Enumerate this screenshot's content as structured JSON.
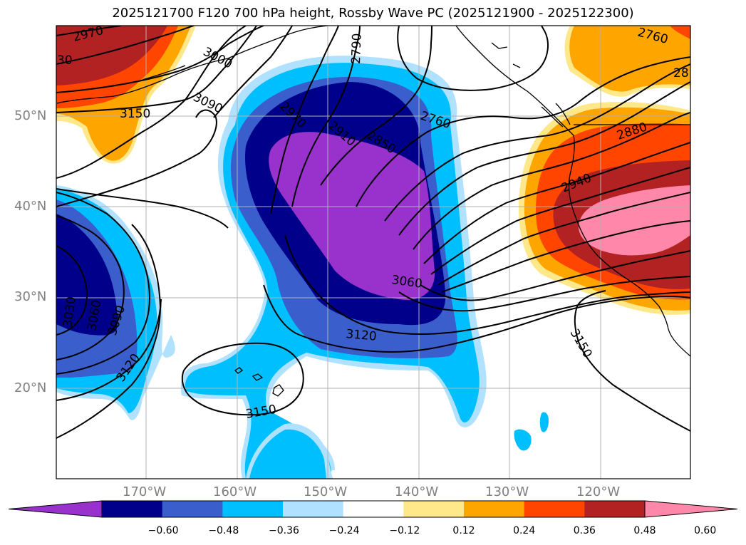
{
  "title": "2025121700 F120 700 hPa height, Rossby Wave PC (2025121900 - 2025122300)",
  "lat_labels": [
    "50°N",
    "40°N",
    "30°N",
    "20°N"
  ],
  "lon_labels": [
    "170°W",
    "160°W",
    "150°W",
    "140°W",
    "130°W",
    "120°W"
  ],
  "colorbar": {
    "ticks": [
      "−0.60",
      "−0.48",
      "−0.36",
      "−0.24",
      "−0.12",
      "0.12",
      "0.24",
      "0.36",
      "0.48",
      "0.60"
    ],
    "colors": [
      "#9932cc",
      "#00008b",
      "#3a5fcd",
      "#00bfff",
      "#b0e2ff",
      "#ffffff",
      "#ffe88a",
      "#ffa500",
      "#ff4500",
      "#b22222",
      "#ff88aa"
    ]
  },
  "contour_labels": [
    {
      "name": "c2970a",
      "text": "2970"
    },
    {
      "name": "c3030a",
      "text": "30"
    },
    {
      "name": "c3000",
      "text": "3000"
    },
    {
      "name": "c3090a",
      "text": "3090"
    },
    {
      "name": "c3150a",
      "text": "3150"
    },
    {
      "name": "c2790",
      "text": "2790"
    },
    {
      "name": "c2970b",
      "text": "2970"
    },
    {
      "name": "c2910",
      "text": "2910"
    },
    {
      "name": "c2850",
      "text": "2850"
    },
    {
      "name": "c2760a",
      "text": "2760"
    },
    {
      "name": "c2760b",
      "text": "2760"
    },
    {
      "name": "c28",
      "text": "28"
    },
    {
      "name": "c2880",
      "text": "2880"
    },
    {
      "name": "c2940",
      "text": "2940"
    },
    {
      "name": "c3060a",
      "text": "3060"
    },
    {
      "name": "c3120a",
      "text": "3120"
    },
    {
      "name": "c3150b",
      "text": "3150"
    },
    {
      "name": "c3030b",
      "text": "3030"
    },
    {
      "name": "c3060b",
      "text": "3060"
    },
    {
      "name": "c3090b",
      "text": "3090"
    },
    {
      "name": "c3120b",
      "text": "3120"
    },
    {
      "name": "c3150c",
      "text": "3150"
    }
  ]
}
